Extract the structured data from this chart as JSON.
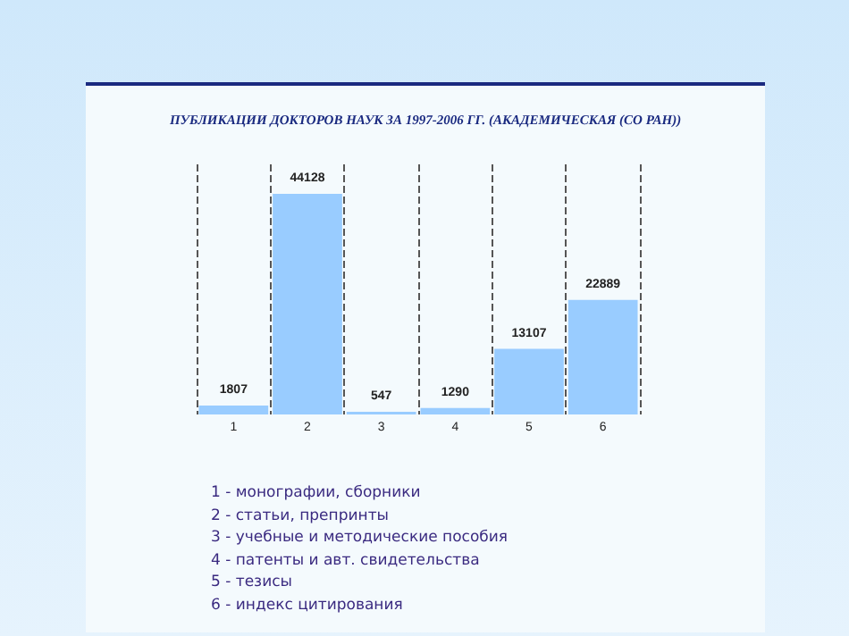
{
  "chart_data": {
    "type": "bar",
    "title": "ПУБЛИКАЦИИ ДОКТОРОВ НАУК ЗА 1997-2006 ГГ. (АКАДЕМИЧЕСКАЯ (СО РАН))",
    "categories": [
      "1",
      "2",
      "3",
      "4",
      "5",
      "6"
    ],
    "values": [
      1807,
      44128,
      547,
      1290,
      13107,
      22889
    ],
    "color": "#99ccff",
    "data_labels": true,
    "grid": "x",
    "annotations": [
      "1 - монографии, сборники",
      "2 - статьи, препринты",
      "3 - учебные и методические пособия",
      "4 - патенты и авт. свидетельства",
      "5 - тезисы",
      "6 - индекс цитирования"
    ]
  }
}
